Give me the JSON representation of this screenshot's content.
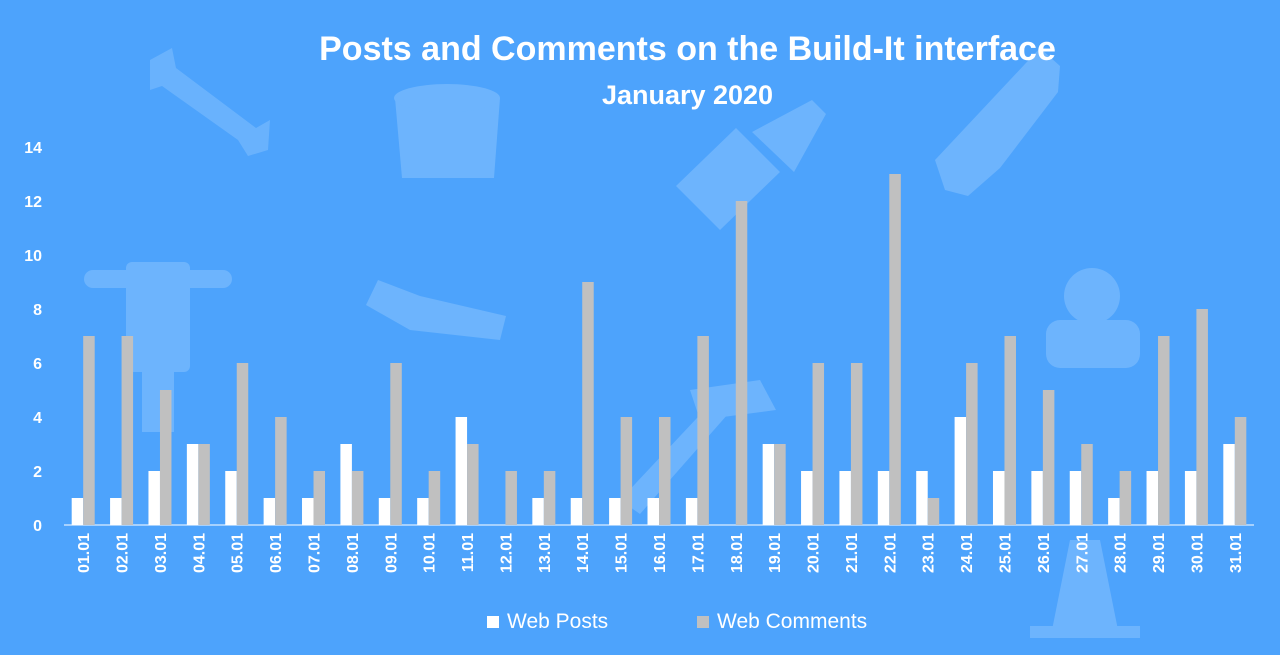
{
  "colors": {
    "background": "#4da3fc",
    "posts": "#ffffff",
    "comments": "#c0c0c0",
    "text": "#ffffff",
    "decor": "#6db4fd"
  },
  "decoration_icons": [
    "wrench-icon",
    "paint-bucket-icon",
    "paint-brush-icon",
    "saw-icon",
    "jackhammer-icon",
    "hand-saw-icon",
    "worker-icon",
    "hammer-icon",
    "traffic-cone-icon"
  ],
  "chart_data": {
    "type": "bar",
    "title": "Posts and Comments on the Build-It interface",
    "subtitle": "January 2020",
    "xlabel": "",
    "ylabel": "",
    "ylim": [
      0,
      14
    ],
    "yticks": [
      0,
      2,
      4,
      6,
      8,
      10,
      12,
      14
    ],
    "grid": false,
    "legend_position": "bottom",
    "categories": [
      "01.01",
      "02.01",
      "03.01",
      "04.01",
      "05.01",
      "06.01",
      "07.01",
      "08.01",
      "09.01",
      "10.01",
      "11.01",
      "12.01",
      "13.01",
      "14.01",
      "15.01",
      "16.01",
      "17.01",
      "18.01",
      "19.01",
      "20.01",
      "21.01",
      "22.01",
      "23.01",
      "24.01",
      "25.01",
      "26.01",
      "27.01",
      "28.01",
      "29.01",
      "30.01",
      "31.01"
    ],
    "series": [
      {
        "name": "Web Posts",
        "values": [
          1,
          1,
          2,
          3,
          2,
          1,
          1,
          3,
          1,
          1,
          4,
          0,
          1,
          1,
          1,
          1,
          1,
          0,
          3,
          2,
          2,
          2,
          2,
          4,
          2,
          2,
          2,
          1,
          2,
          2,
          3
        ]
      },
      {
        "name": "Web Comments",
        "values": [
          7,
          7,
          5,
          3,
          6,
          4,
          2,
          2,
          6,
          2,
          3,
          2,
          2,
          9,
          4,
          4,
          7,
          12,
          3,
          6,
          6,
          13,
          1,
          6,
          7,
          5,
          3,
          2,
          7,
          8,
          4
        ]
      }
    ]
  }
}
